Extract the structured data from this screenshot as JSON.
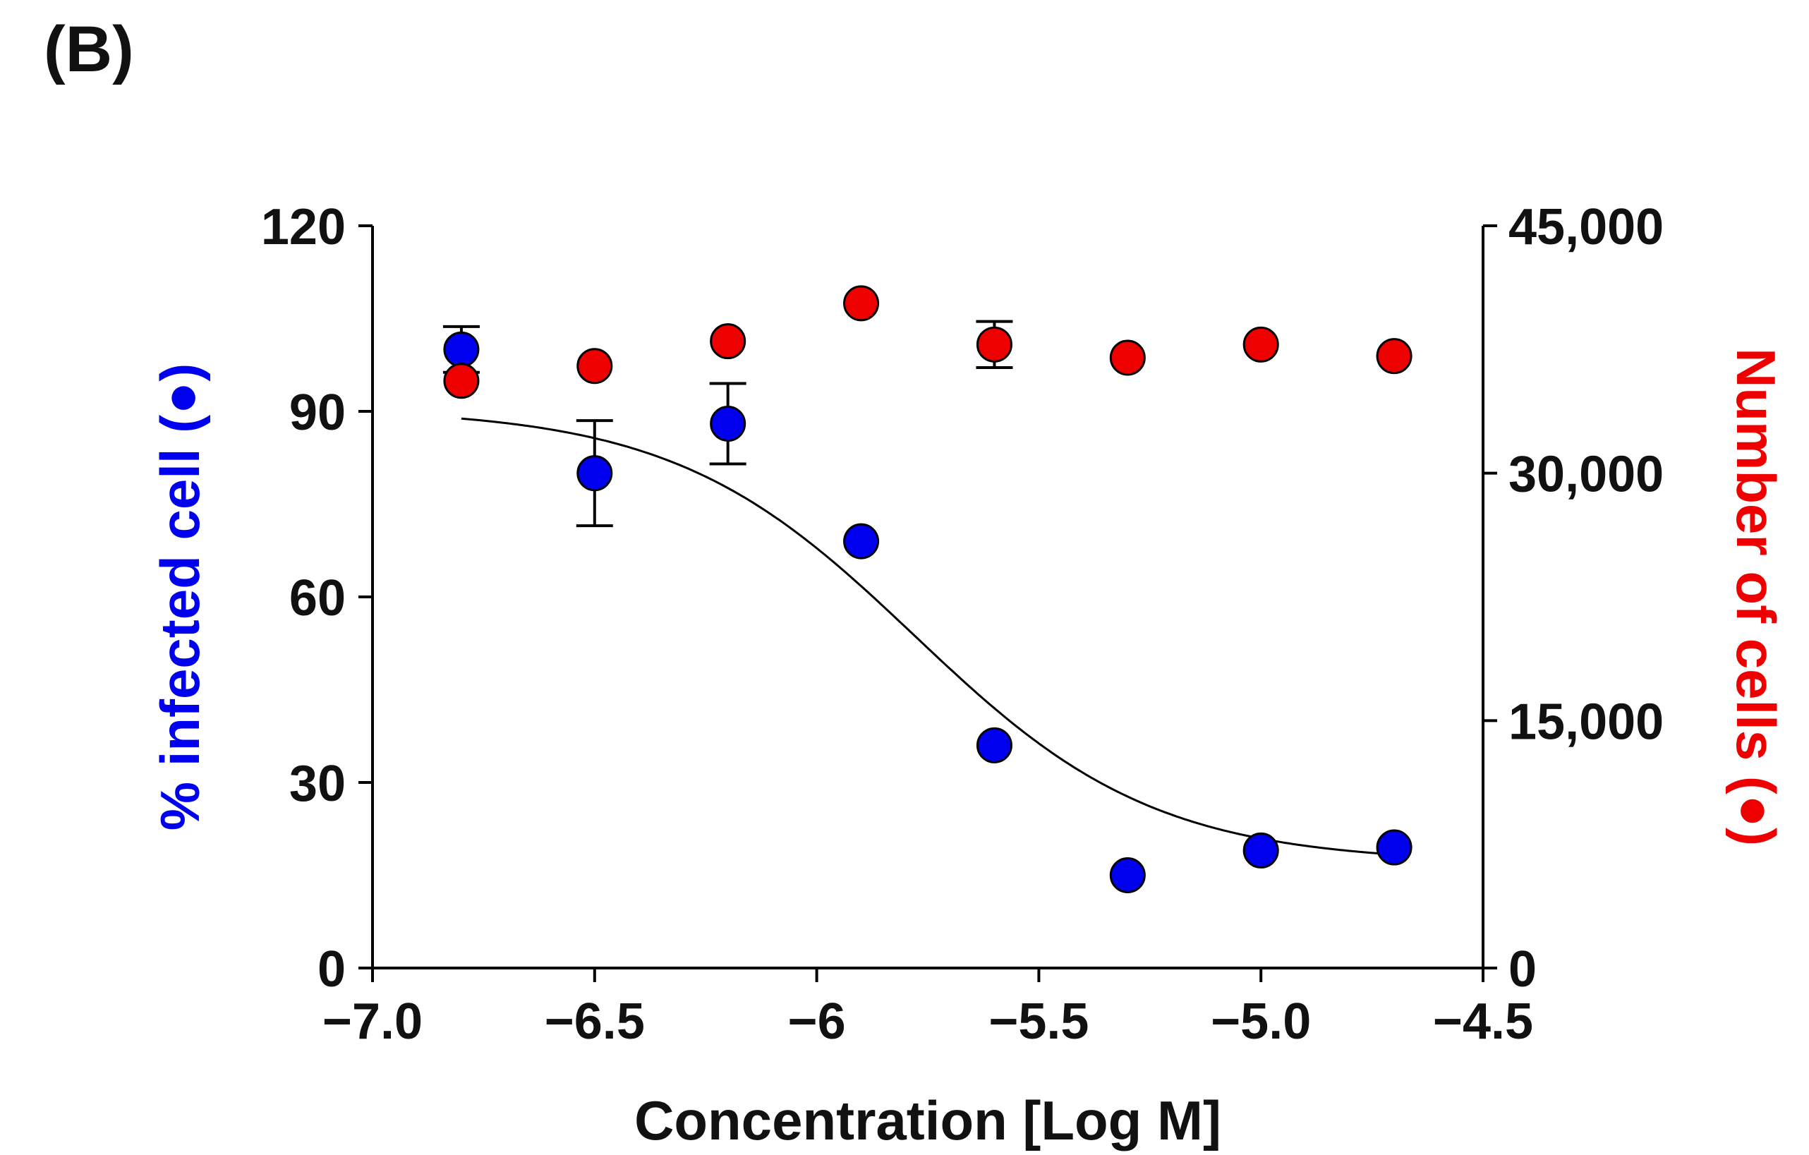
{
  "panel_label": "(B)",
  "chart_data": {
    "type": "scatter",
    "xlabel": "Concentration [Log M]",
    "ylabel_left": "% infected cell (●)",
    "ylabel_right": "Number of cells (●)",
    "xlim": [
      -7.0,
      -4.5
    ],
    "ylim_left": [
      0,
      120
    ],
    "ylim_right": [
      0,
      45000
    ],
    "x_ticks": [
      -7.0,
      -6.5,
      -6.0,
      -5.5,
      -5.0,
      -4.5
    ],
    "x_tick_labels": [
      "−7.0",
      "−6.5",
      "−6",
      "−5.5",
      "−5.0",
      "−4.5"
    ],
    "y_left_ticks": [
      0,
      30,
      60,
      90,
      120
    ],
    "y_left_tick_labels": [
      "0",
      "30",
      "60",
      "90",
      "120"
    ],
    "y_right_ticks": [
      0,
      15000,
      30000,
      45000
    ],
    "y_right_tick_labels": [
      "0",
      "15,000",
      "30,000",
      "45,000"
    ],
    "series": [
      {
        "name": "% infected cell",
        "axis": "left",
        "color": "#0000ee",
        "x": [
          -6.8,
          -6.5,
          -6.2,
          -5.9,
          -5.6,
          -5.3,
          -5.0,
          -4.7
        ],
        "y": [
          100,
          80,
          88,
          69,
          36,
          15,
          19,
          19.5
        ],
        "err": [
          3.7,
          8.5,
          6.5,
          0,
          0,
          0,
          0,
          0
        ],
        "fit": {
          "model": "four-parameter logistic",
          "top": 90.5,
          "bottom": 17,
          "log_ic50": -5.78,
          "hill_slope": -1.6
        }
      },
      {
        "name": "Number of cells",
        "axis": "right",
        "color": "#ee0000",
        "x": [
          -6.8,
          -6.5,
          -6.2,
          -5.9,
          -5.6,
          -5.3,
          -5.0,
          -4.7
        ],
        "y": [
          35600,
          36500,
          38000,
          40300,
          37800,
          37000,
          37800,
          37100
        ],
        "err": [
          0,
          0,
          0,
          0,
          1400,
          0,
          0,
          0
        ]
      }
    ]
  }
}
